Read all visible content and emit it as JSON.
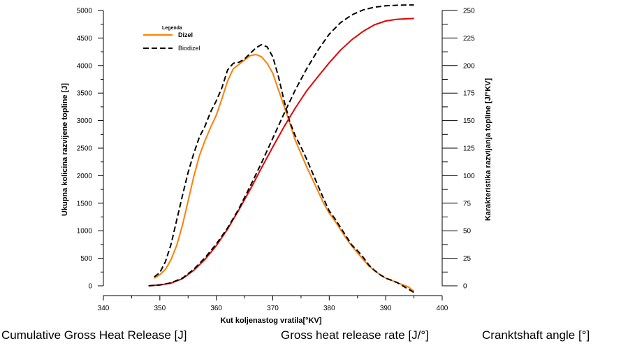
{
  "chart_data": {
    "type": "line",
    "xlabel": "Kut koljenastog vratila[°KV]",
    "ylabel_left": "Ukupna kolicina razvijene topline [J]",
    "ylabel_right": "Karakteristika razvijanja topline [J/°KV]",
    "xlim": [
      340,
      400
    ],
    "ylim_left": [
      0,
      5000
    ],
    "ylim_right": [
      0,
      250
    ],
    "x_ticks": [
      340,
      350,
      360,
      370,
      380,
      390,
      400
    ],
    "y_left_ticks": [
      0,
      500,
      1000,
      1500,
      2000,
      2500,
      3000,
      3500,
      4000,
      4500,
      5000
    ],
    "y_right_ticks": [
      0,
      25,
      50,
      75,
      100,
      125,
      150,
      175,
      200,
      225,
      250
    ],
    "legend": {
      "title": "Legenda",
      "placement": "top-left",
      "entries": [
        "Dizel",
        "Biodizel"
      ]
    },
    "colors": {
      "dizel_rate": "#ff7f00",
      "dizel_cumulative": "#e00000",
      "biodizel": "#000000"
    },
    "series": [
      {
        "name": "Dizel",
        "axis": "right",
        "style": "solid",
        "color": "#ff7f00",
        "x": [
          349,
          350,
          351,
          352,
          353,
          354,
          355,
          356,
          357,
          358,
          359,
          360,
          361,
          362,
          363,
          364,
          365,
          366,
          367,
          368,
          369,
          370,
          371,
          372,
          373,
          374,
          375,
          376,
          377,
          378,
          379,
          380,
          381,
          382,
          383,
          384,
          385,
          386,
          387,
          388,
          389,
          390,
          391,
          392,
          393,
          394,
          395
        ],
        "y": [
          7,
          10,
          15,
          24,
          37,
          55,
          77,
          99,
          118,
          132,
          144,
          155,
          170,
          186,
          197,
          201,
          205,
          209,
          210,
          208,
          202,
          193,
          178,
          163,
          148,
          132,
          120,
          108,
          97,
          86,
          75,
          66,
          59,
          51,
          43,
          36,
          30,
          24,
          18,
          14,
          10,
          7,
          5,
          3,
          1,
          -1,
          -5
        ]
      },
      {
        "name": "Biodizel",
        "axis": "right",
        "style": "dashed",
        "color": "#000000",
        "x": [
          349,
          350,
          351,
          352,
          353,
          354,
          355,
          356,
          357,
          358,
          359,
          360,
          361,
          362,
          363,
          364,
          365,
          366,
          367,
          368,
          369,
          370,
          371,
          372,
          373,
          374,
          375,
          376,
          377,
          378,
          379,
          380,
          381,
          382,
          383,
          384,
          385,
          386,
          387,
          388,
          389,
          390,
          391,
          392,
          393,
          394,
          395
        ],
        "y": [
          8,
          12,
          22,
          38,
          60,
          82,
          103,
          120,
          135,
          145,
          158,
          168,
          180,
          196,
          202,
          203,
          206,
          211,
          216,
          219,
          217,
          208,
          190,
          168,
          149,
          136,
          126,
          115,
          103,
          91,
          79,
          68,
          61,
          53,
          45,
          37,
          32,
          26,
          19,
          14,
          10,
          7,
          5,
          3,
          0,
          -3,
          -6
        ]
      },
      {
        "name": "Dizel",
        "axis": "left",
        "style": "solid",
        "color": "#e00000",
        "x": [
          348,
          350,
          352,
          354,
          356,
          358,
          360,
          362,
          364,
          366,
          368,
          370,
          372,
          374,
          376,
          378,
          380,
          382,
          384,
          386,
          388,
          390,
          392,
          394,
          395
        ],
        "y": [
          0,
          15,
          50,
          130,
          280,
          480,
          730,
          1030,
          1380,
          1750,
          2140,
          2520,
          2890,
          3230,
          3540,
          3800,
          4050,
          4280,
          4470,
          4620,
          4740,
          4810,
          4840,
          4850,
          4855
        ]
      },
      {
        "name": "Biodizel",
        "axis": "left",
        "style": "dashed",
        "color": "#000000",
        "x": [
          348,
          350,
          352,
          354,
          356,
          358,
          360,
          362,
          364,
          366,
          368,
          370,
          372,
          374,
          376,
          378,
          380,
          382,
          384,
          386,
          388,
          390,
          392,
          394,
          395
        ],
        "y": [
          0,
          15,
          55,
          140,
          300,
          510,
          760,
          1050,
          1400,
          1810,
          2230,
          2680,
          3130,
          3560,
          3940,
          4280,
          4570,
          4780,
          4920,
          5010,
          5060,
          5085,
          5095,
          5100,
          5100
        ]
      }
    ]
  },
  "captions": {
    "left": "Cumulative Gross Heat Release [J]",
    "middle": "Gross heat release rate [J/°]",
    "right": "Cranktshaft angle [°]"
  }
}
